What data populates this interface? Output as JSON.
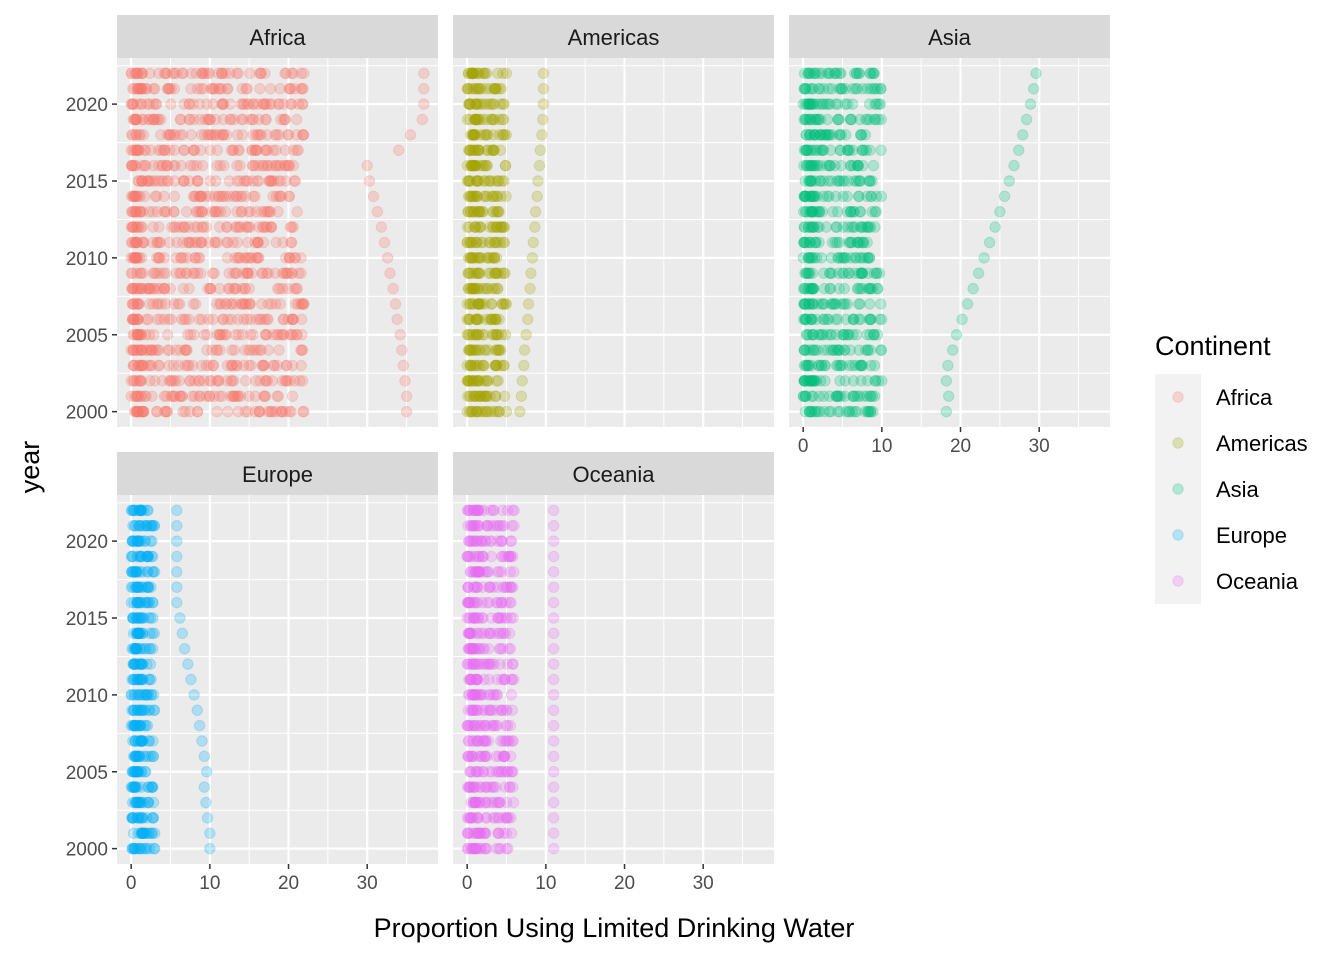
{
  "chart_data": {
    "type": "scatter",
    "faceted": true,
    "facet_by": "Continent",
    "xlabel": "Proportion Using Limited Drinking Water",
    "ylabel": "year",
    "xlim": [
      -1.8,
      39
    ],
    "ylim": [
      1999,
      2023
    ],
    "x_ticks": [
      "0",
      "10",
      "20",
      "30"
    ],
    "y_ticks": [
      "2000",
      "2005",
      "2010",
      "2015",
      "2020"
    ],
    "years": [
      2000,
      2001,
      2002,
      2003,
      2004,
      2005,
      2006,
      2007,
      2008,
      2009,
      2010,
      2011,
      2012,
      2013,
      2014,
      2015,
      2016,
      2017,
      2018,
      2019,
      2020,
      2021,
      2022
    ],
    "grid": true,
    "point_alpha": 0.25,
    "legend": {
      "title": "Continent",
      "position": "right",
      "entries": [
        "Africa",
        "Americas",
        "Asia",
        "Europe",
        "Oceania"
      ]
    },
    "colors": {
      "Africa": "#F8766D",
      "Americas": "#A3A500",
      "Asia": "#00BF7D",
      "Europe": "#00B0F6",
      "Oceania": "#E76BF3"
    },
    "panels": [
      {
        "name": "Africa",
        "dense_range": [
          0,
          22
        ],
        "trend_points": [
          {
            "year": 2000,
            "x": 35.0
          },
          {
            "year": 2001,
            "x": 35.0
          },
          {
            "year": 2002,
            "x": 34.8
          },
          {
            "year": 2003,
            "x": 34.6
          },
          {
            "year": 2004,
            "x": 34.4
          },
          {
            "year": 2005,
            "x": 34.2
          },
          {
            "year": 2006,
            "x": 33.8
          },
          {
            "year": 2007,
            "x": 33.6
          },
          {
            "year": 2008,
            "x": 33.3
          },
          {
            "year": 2009,
            "x": 32.9
          },
          {
            "year": 2010,
            "x": 32.6
          },
          {
            "year": 2011,
            "x": 32.2
          },
          {
            "year": 2012,
            "x": 31.8
          },
          {
            "year": 2013,
            "x": 31.3
          },
          {
            "year": 2014,
            "x": 30.8
          },
          {
            "year": 2015,
            "x": 30.3
          },
          {
            "year": 2016,
            "x": 30.0
          },
          {
            "year": 2017,
            "x": 34.0
          },
          {
            "year": 2018,
            "x": 35.5
          },
          {
            "year": 2019,
            "x": 37.0
          },
          {
            "year": 2020,
            "x": 37.2
          },
          {
            "year": 2021,
            "x": 37.2
          },
          {
            "year": 2022,
            "x": 37.2
          }
        ]
      },
      {
        "name": "Americas",
        "dense_range": [
          0,
          5
        ],
        "trend_points": [
          {
            "year": 2000,
            "x": 6.7
          },
          {
            "year": 2001,
            "x": 6.9
          },
          {
            "year": 2002,
            "x": 7.0
          },
          {
            "year": 2003,
            "x": 7.2
          },
          {
            "year": 2004,
            "x": 7.3
          },
          {
            "year": 2005,
            "x": 7.5
          },
          {
            "year": 2006,
            "x": 7.7
          },
          {
            "year": 2007,
            "x": 7.8
          },
          {
            "year": 2008,
            "x": 8.0
          },
          {
            "year": 2009,
            "x": 8.1
          },
          {
            "year": 2010,
            "x": 8.3
          },
          {
            "year": 2011,
            "x": 8.4
          },
          {
            "year": 2012,
            "x": 8.6
          },
          {
            "year": 2013,
            "x": 8.7
          },
          {
            "year": 2014,
            "x": 8.9
          },
          {
            "year": 2015,
            "x": 9.0
          },
          {
            "year": 2016,
            "x": 9.2
          },
          {
            "year": 2017,
            "x": 9.3
          },
          {
            "year": 2018,
            "x": 9.5
          },
          {
            "year": 2019,
            "x": 9.6
          },
          {
            "year": 2020,
            "x": 9.7
          },
          {
            "year": 2021,
            "x": 9.7
          },
          {
            "year": 2022,
            "x": 9.7
          }
        ]
      },
      {
        "name": "Asia",
        "dense_range": [
          0,
          10
        ],
        "trend_points": [
          {
            "year": 2000,
            "x": 18.2
          },
          {
            "year": 2001,
            "x": 18.5
          },
          {
            "year": 2002,
            "x": 18.2
          },
          {
            "year": 2003,
            "x": 18.4
          },
          {
            "year": 2004,
            "x": 19.0
          },
          {
            "year": 2005,
            "x": 19.5
          },
          {
            "year": 2006,
            "x": 20.2
          },
          {
            "year": 2007,
            "x": 20.9
          },
          {
            "year": 2008,
            "x": 21.6
          },
          {
            "year": 2009,
            "x": 22.3
          },
          {
            "year": 2010,
            "x": 23.0
          },
          {
            "year": 2011,
            "x": 23.7
          },
          {
            "year": 2012,
            "x": 24.4
          },
          {
            "year": 2013,
            "x": 25.0
          },
          {
            "year": 2014,
            "x": 25.6
          },
          {
            "year": 2015,
            "x": 26.2
          },
          {
            "year": 2016,
            "x": 26.8
          },
          {
            "year": 2017,
            "x": 27.4
          },
          {
            "year": 2018,
            "x": 27.9
          },
          {
            "year": 2019,
            "x": 28.4
          },
          {
            "year": 2020,
            "x": 28.9
          },
          {
            "year": 2021,
            "x": 29.3
          },
          {
            "year": 2022,
            "x": 29.6
          }
        ]
      },
      {
        "name": "Europe",
        "dense_range": [
          0,
          3
        ],
        "trend_points": [
          {
            "year": 2000,
            "x": 10.0
          },
          {
            "year": 2001,
            "x": 10.0
          },
          {
            "year": 2002,
            "x": 9.7
          },
          {
            "year": 2003,
            "x": 9.5
          },
          {
            "year": 2004,
            "x": 9.3
          },
          {
            "year": 2005,
            "x": 9.6
          },
          {
            "year": 2006,
            "x": 9.3
          },
          {
            "year": 2007,
            "x": 9.0
          },
          {
            "year": 2008,
            "x": 8.7
          },
          {
            "year": 2009,
            "x": 8.4
          },
          {
            "year": 2010,
            "x": 8.0
          },
          {
            "year": 2011,
            "x": 7.6
          },
          {
            "year": 2012,
            "x": 7.2
          },
          {
            "year": 2013,
            "x": 6.8
          },
          {
            "year": 2014,
            "x": 6.5
          },
          {
            "year": 2015,
            "x": 6.2
          },
          {
            "year": 2016,
            "x": 5.8
          },
          {
            "year": 2017,
            "x": 5.8
          },
          {
            "year": 2018,
            "x": 5.8
          },
          {
            "year": 2019,
            "x": 5.8
          },
          {
            "year": 2020,
            "x": 5.8
          },
          {
            "year": 2021,
            "x": 5.8
          },
          {
            "year": 2022,
            "x": 5.8
          }
        ]
      },
      {
        "name": "Oceania",
        "dense_range": [
          0,
          6
        ],
        "trend_points": [
          {
            "year": 2000,
            "x": 11.0
          },
          {
            "year": 2001,
            "x": 11.0
          },
          {
            "year": 2002,
            "x": 11.0
          },
          {
            "year": 2003,
            "x": 11.0
          },
          {
            "year": 2004,
            "x": 11.0
          },
          {
            "year": 2005,
            "x": 11.0
          },
          {
            "year": 2006,
            "x": 11.0
          },
          {
            "year": 2007,
            "x": 11.0
          },
          {
            "year": 2008,
            "x": 11.0
          },
          {
            "year": 2009,
            "x": 11.0
          },
          {
            "year": 2010,
            "x": 11.0
          },
          {
            "year": 2011,
            "x": 11.0
          },
          {
            "year": 2012,
            "x": 11.0
          },
          {
            "year": 2013,
            "x": 11.0
          },
          {
            "year": 2014,
            "x": 11.0
          },
          {
            "year": 2015,
            "x": 11.0
          },
          {
            "year": 2016,
            "x": 11.0
          },
          {
            "year": 2017,
            "x": 11.0
          },
          {
            "year": 2018,
            "x": 11.0
          },
          {
            "year": 2019,
            "x": 11.0
          },
          {
            "year": 2020,
            "x": 11.0
          },
          {
            "year": 2021,
            "x": 11.0
          },
          {
            "year": 2022,
            "x": 11.0
          }
        ]
      }
    ]
  }
}
